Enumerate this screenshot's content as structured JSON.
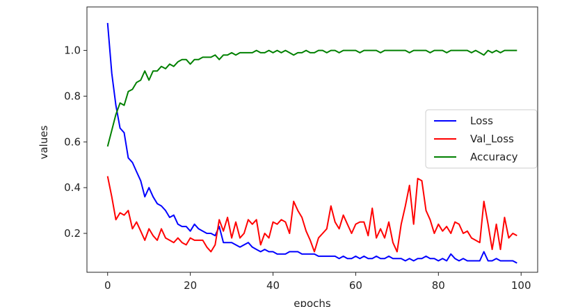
{
  "chart_data": {
    "type": "line",
    "xlabel": "epochs",
    "ylabel": "values",
    "xlim": [
      -5,
      104
    ],
    "ylim": [
      0.03,
      1.19
    ],
    "xticks": [
      0,
      20,
      40,
      60,
      80,
      100
    ],
    "xtick_labels": [
      "0",
      "20",
      "40",
      "60",
      "80",
      "100"
    ],
    "yticks": [
      0.2,
      0.4,
      0.6,
      0.8,
      1.0
    ],
    "ytick_labels": [
      "0.2",
      "0.4",
      "0.6",
      "0.8",
      "1.0"
    ],
    "grid": false,
    "legend_position": "center-right",
    "series": [
      {
        "name": "Loss",
        "color": "#0000ff",
        "x": [
          0,
          1,
          2,
          3,
          4,
          5,
          6,
          7,
          8,
          9,
          10,
          11,
          12,
          13,
          14,
          15,
          16,
          17,
          18,
          19,
          20,
          21,
          22,
          23,
          24,
          25,
          26,
          27,
          28,
          29,
          30,
          31,
          32,
          33,
          34,
          35,
          36,
          37,
          38,
          39,
          40,
          41,
          42,
          43,
          44,
          45,
          46,
          47,
          48,
          49,
          50,
          51,
          52,
          53,
          54,
          55,
          56,
          57,
          58,
          59,
          60,
          61,
          62,
          63,
          64,
          65,
          66,
          67,
          68,
          69,
          70,
          71,
          72,
          73,
          74,
          75,
          76,
          77,
          78,
          79,
          80,
          81,
          82,
          83,
          84,
          85,
          86,
          87,
          88,
          89,
          90,
          91,
          92,
          93,
          94,
          95,
          96,
          97,
          98,
          99
        ],
        "values": [
          1.12,
          0.9,
          0.76,
          0.66,
          0.64,
          0.53,
          0.51,
          0.47,
          0.43,
          0.36,
          0.4,
          0.36,
          0.33,
          0.32,
          0.3,
          0.27,
          0.28,
          0.24,
          0.23,
          0.23,
          0.21,
          0.24,
          0.22,
          0.21,
          0.2,
          0.2,
          0.19,
          0.23,
          0.16,
          0.16,
          0.16,
          0.15,
          0.14,
          0.15,
          0.16,
          0.14,
          0.13,
          0.12,
          0.13,
          0.12,
          0.12,
          0.11,
          0.11,
          0.11,
          0.12,
          0.12,
          0.12,
          0.11,
          0.11,
          0.11,
          0.11,
          0.1,
          0.1,
          0.1,
          0.1,
          0.1,
          0.09,
          0.1,
          0.09,
          0.09,
          0.1,
          0.09,
          0.1,
          0.09,
          0.09,
          0.1,
          0.09,
          0.09,
          0.1,
          0.09,
          0.09,
          0.09,
          0.08,
          0.09,
          0.08,
          0.09,
          0.09,
          0.1,
          0.09,
          0.09,
          0.08,
          0.09,
          0.08,
          0.11,
          0.09,
          0.08,
          0.09,
          0.08,
          0.08,
          0.08,
          0.08,
          0.12,
          0.08,
          0.08,
          0.09,
          0.08,
          0.08,
          0.08,
          0.08,
          0.07
        ]
      },
      {
        "name": "Val_Loss",
        "color": "#ff0000",
        "x": [
          0,
          1,
          2,
          3,
          4,
          5,
          6,
          7,
          8,
          9,
          10,
          11,
          12,
          13,
          14,
          15,
          16,
          17,
          18,
          19,
          20,
          21,
          22,
          23,
          24,
          25,
          26,
          27,
          28,
          29,
          30,
          31,
          32,
          33,
          34,
          35,
          36,
          37,
          38,
          39,
          40,
          41,
          42,
          43,
          44,
          45,
          46,
          47,
          48,
          49,
          50,
          51,
          52,
          53,
          54,
          55,
          56,
          57,
          58,
          59,
          60,
          61,
          62,
          63,
          64,
          65,
          66,
          67,
          68,
          69,
          70,
          71,
          72,
          73,
          74,
          75,
          76,
          77,
          78,
          79,
          80,
          81,
          82,
          83,
          84,
          85,
          86,
          87,
          88,
          89,
          90,
          91,
          92,
          93,
          94,
          95,
          96,
          97,
          98,
          99
        ],
        "values": [
          0.45,
          0.36,
          0.26,
          0.29,
          0.28,
          0.3,
          0.22,
          0.25,
          0.21,
          0.17,
          0.22,
          0.19,
          0.17,
          0.22,
          0.18,
          0.17,
          0.16,
          0.18,
          0.16,
          0.15,
          0.18,
          0.17,
          0.17,
          0.17,
          0.14,
          0.12,
          0.15,
          0.26,
          0.21,
          0.27,
          0.18,
          0.25,
          0.18,
          0.2,
          0.26,
          0.24,
          0.26,
          0.15,
          0.2,
          0.18,
          0.25,
          0.24,
          0.26,
          0.25,
          0.2,
          0.34,
          0.3,
          0.27,
          0.21,
          0.17,
          0.12,
          0.18,
          0.2,
          0.22,
          0.32,
          0.25,
          0.22,
          0.28,
          0.24,
          0.2,
          0.24,
          0.25,
          0.25,
          0.19,
          0.31,
          0.18,
          0.22,
          0.18,
          0.25,
          0.16,
          0.12,
          0.24,
          0.32,
          0.41,
          0.24,
          0.44,
          0.43,
          0.3,
          0.26,
          0.2,
          0.24,
          0.21,
          0.23,
          0.2,
          0.25,
          0.24,
          0.2,
          0.21,
          0.18,
          0.17,
          0.16,
          0.34,
          0.24,
          0.13,
          0.24,
          0.13,
          0.27,
          0.18,
          0.2,
          0.19
        ]
      },
      {
        "name": "Accuracy",
        "color": "#008000",
        "x": [
          0,
          1,
          2,
          3,
          4,
          5,
          6,
          7,
          8,
          9,
          10,
          11,
          12,
          13,
          14,
          15,
          16,
          17,
          18,
          19,
          20,
          21,
          22,
          23,
          24,
          25,
          26,
          27,
          28,
          29,
          30,
          31,
          32,
          33,
          34,
          35,
          36,
          37,
          38,
          39,
          40,
          41,
          42,
          43,
          44,
          45,
          46,
          47,
          48,
          49,
          50,
          51,
          52,
          53,
          54,
          55,
          56,
          57,
          58,
          59,
          60,
          61,
          62,
          63,
          64,
          65,
          66,
          67,
          68,
          69,
          70,
          71,
          72,
          73,
          74,
          75,
          76,
          77,
          78,
          79,
          80,
          81,
          82,
          83,
          84,
          85,
          86,
          87,
          88,
          89,
          90,
          91,
          92,
          93,
          94,
          95,
          96,
          97,
          98,
          99
        ],
        "values": [
          0.58,
          0.65,
          0.72,
          0.77,
          0.76,
          0.82,
          0.83,
          0.86,
          0.87,
          0.91,
          0.87,
          0.91,
          0.91,
          0.93,
          0.92,
          0.94,
          0.93,
          0.95,
          0.96,
          0.96,
          0.94,
          0.96,
          0.96,
          0.97,
          0.97,
          0.97,
          0.98,
          0.96,
          0.98,
          0.98,
          0.99,
          0.98,
          0.99,
          0.99,
          0.99,
          0.99,
          1.0,
          0.99,
          0.99,
          1.0,
          0.99,
          1.0,
          0.99,
          1.0,
          0.99,
          0.98,
          0.99,
          0.99,
          1.0,
          0.99,
          0.99,
          1.0,
          1.0,
          0.99,
          1.0,
          1.0,
          0.99,
          1.0,
          1.0,
          1.0,
          1.0,
          0.99,
          1.0,
          1.0,
          1.0,
          1.0,
          0.99,
          1.0,
          1.0,
          1.0,
          1.0,
          1.0,
          1.0,
          0.99,
          1.0,
          1.0,
          1.0,
          1.0,
          0.99,
          1.0,
          1.0,
          1.0,
          0.99,
          1.0,
          1.0,
          1.0,
          1.0,
          1.0,
          0.99,
          1.0,
          0.99,
          0.98,
          1.0,
          0.99,
          1.0,
          0.99,
          1.0,
          1.0,
          1.0,
          1.0
        ]
      }
    ]
  }
}
